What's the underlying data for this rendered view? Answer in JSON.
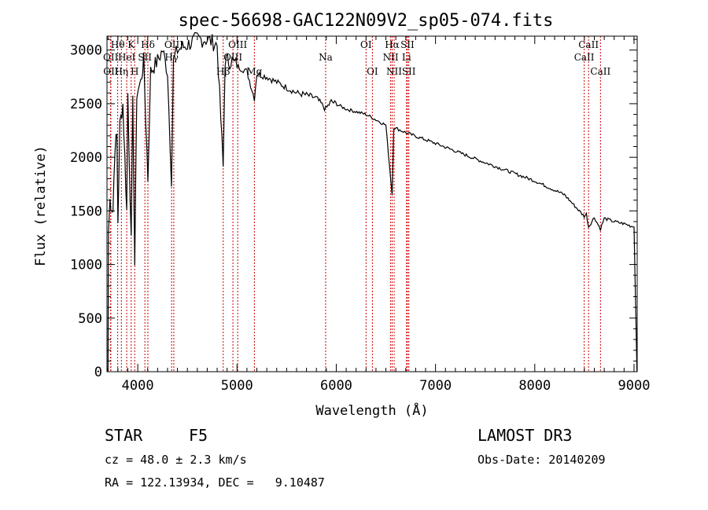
{
  "chart_data": {
    "type": "line",
    "title": "spec-56698-GAC122N09V2_sp05-074.fits",
    "xlabel": "Wavelength (Å)",
    "ylabel": "Flux (relative)",
    "xlim": [
      3690,
      9032
    ],
    "ylim": [
      0,
      3130
    ],
    "xticks": [
      4000,
      5000,
      6000,
      7000,
      8000,
      9000
    ],
    "yticks": [
      0,
      500,
      1000,
      1500,
      2000,
      2500,
      3000
    ],
    "grid": false,
    "series": [
      {
        "name": "spectrum",
        "color": "#000000",
        "x": [
          3700,
          3705,
          3720,
          3750,
          3770,
          3790,
          3800,
          3820,
          3850,
          3870,
          3889,
          3900,
          3934,
          3950,
          3970,
          3990,
          4030,
          4060,
          4102,
          4130,
          4200,
          4250,
          4300,
          4340,
          4360,
          4400,
          4500,
          4600,
          4700,
          4800,
          4861,
          4880,
          4950,
          5000,
          5100,
          5175,
          5200,
          5300,
          5400,
          5500,
          5600,
          5700,
          5800,
          5893,
          5950,
          6100,
          6300,
          6400,
          6500,
          6563,
          6580,
          6700,
          7000,
          7500,
          8000,
          8300,
          8498,
          8520,
          8542,
          8600,
          8662,
          8700,
          8800,
          8900,
          9000,
          9030
        ],
        "y": [
          0,
          1300,
          1600,
          1500,
          2100,
          2200,
          1400,
          2300,
          2500,
          2000,
          1500,
          2600,
          1200,
          2500,
          1000,
          2600,
          2700,
          2900,
          1800,
          2800,
          2900,
          3000,
          2800,
          1800,
          2900,
          3000,
          3050,
          3100,
          3100,
          3050,
          1900,
          2900,
          2900,
          2850,
          2800,
          2550,
          2780,
          2750,
          2700,
          2650,
          2600,
          2580,
          2550,
          2450,
          2520,
          2450,
          2400,
          2350,
          2300,
          1650,
          2280,
          2230,
          2130,
          1950,
          1780,
          1650,
          1450,
          1470,
          1350,
          1440,
          1330,
          1430,
          1400,
          1380,
          1350,
          0
        ]
      }
    ],
    "line_markers": {
      "color": "#cc0000",
      "lines": [
        {
          "label": "Hθ",
          "wave": 3798,
          "row": 0
        },
        {
          "label": "K",
          "wave": 3934,
          "row": 0
        },
        {
          "label": "Hδ",
          "wave": 4102,
          "row": 0
        },
        {
          "label": "OIII",
          "wave": 4363,
          "row": 0
        },
        {
          "label": "OIII",
          "wave": 5007,
          "row": 0
        },
        {
          "label": "OII",
          "wave": 3727,
          "row": 1
        },
        {
          "label": "HeI",
          "wave": 3889,
          "row": 1
        },
        {
          "label": "SII",
          "wave": 4072,
          "row": 1
        },
        {
          "label": "Hγ",
          "wave": 4341,
          "row": 1
        },
        {
          "label": "OIII",
          "wave": 4959,
          "row": 1
        },
        {
          "label": "OII",
          "wave": 3729,
          "row": 2
        },
        {
          "label": "Hη",
          "wave": 3835,
          "row": 2
        },
        {
          "label": "H",
          "wave": 3969,
          "row": 2
        },
        {
          "label": "Hβ",
          "wave": 4861,
          "row": 2
        },
        {
          "label": "Mg",
          "wave": 5175,
          "row": 2
        },
        {
          "label": "Na",
          "wave": 5893,
          "row": 1
        },
        {
          "label": "OI",
          "wave": 6300,
          "row": 0
        },
        {
          "label": "OI",
          "wave": 6364,
          "row": 2
        },
        {
          "label": "Hα",
          "wave": 6563,
          "row": 0
        },
        {
          "label": "SII",
          "wave": 6717,
          "row": 0
        },
        {
          "label": "NII",
          "wave": 6548,
          "row": 1
        },
        {
          "label": "Li",
          "wave": 6708,
          "row": 1
        },
        {
          "label": "NII",
          "wave": 6583,
          "row": 2
        },
        {
          "label": "SII",
          "wave": 6731,
          "row": 2
        },
        {
          "label": "CaII",
          "wave": 8542,
          "row": 0
        },
        {
          "label": "CaII",
          "wave": 8498,
          "row": 1
        },
        {
          "label": "CaII",
          "wave": 8662,
          "row": 2
        }
      ]
    }
  },
  "info": {
    "class": "STAR",
    "subclass": "F5",
    "survey": "LAMOST DR3",
    "cz": "cz = 48.0 ± 2.3 km/s",
    "obs_date": "Obs-Date: 20140209",
    "coords": "RA = 122.13934, DEC =   9.10487"
  }
}
